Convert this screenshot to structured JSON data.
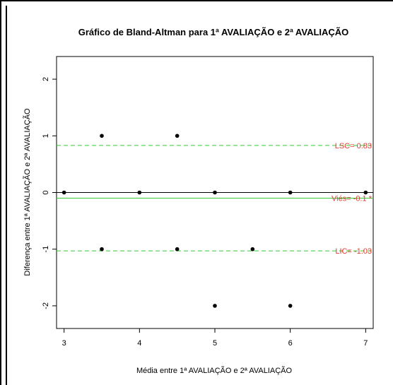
{
  "chart_data": {
    "type": "scatter",
    "title": "Gráfico de Bland-Altman para 1ª AVALIAÇÃO e 2ª AVALIAÇÃO",
    "xlabel": "Média entre 1ª AVALIAÇÃO e 2ª AVALIAÇÃO",
    "ylabel": "Diferença entre 1ª AVALIAÇÃO e 2ª AVALIAÇÃO",
    "xlim": [
      2.9,
      7.1
    ],
    "ylim": [
      -2.4,
      2.4
    ],
    "xticks": [
      3,
      4,
      5,
      6,
      7
    ],
    "yticks": [
      -2,
      -1,
      0,
      1,
      2
    ],
    "grid": false,
    "points": [
      {
        "x": 3,
        "y": 0
      },
      {
        "x": 3.5,
        "y": 1
      },
      {
        "x": 3.5,
        "y": -1
      },
      {
        "x": 4,
        "y": 0
      },
      {
        "x": 4.5,
        "y": 1
      },
      {
        "x": 4.5,
        "y": -1
      },
      {
        "x": 5,
        "y": 0
      },
      {
        "x": 5,
        "y": -2
      },
      {
        "x": 5.5,
        "y": -1
      },
      {
        "x": 6,
        "y": 0
      },
      {
        "x": 6,
        "y": -2
      },
      {
        "x": 7,
        "y": 0
      }
    ],
    "reference_lines": [
      {
        "y": 0.83,
        "label": "LSC= 0.83",
        "style": "dashed",
        "color": "#33cc33"
      },
      {
        "y": -0.1,
        "label": "Viés= -0.1 *",
        "style": "solid",
        "color": "#33cc33"
      },
      {
        "y": -1.03,
        "label": "LIC= -1.03",
        "style": "dashed",
        "color": "#33cc33"
      },
      {
        "y": 0,
        "label": "",
        "style": "solid",
        "color": "#000000"
      }
    ],
    "label_color": "#e03c31",
    "point_color": "#000000"
  }
}
